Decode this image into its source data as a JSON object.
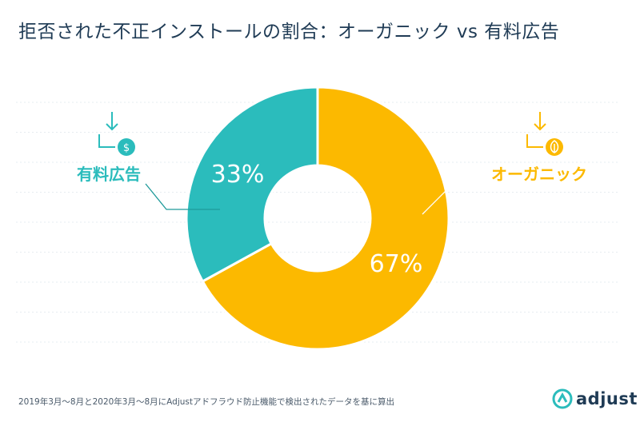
{
  "title": "拒否された不正インストールの割合：オーガニック vs 有料広告",
  "footnote": "2019年3月〜8月と2020年3月〜8月にAdjustアドフラウド防止機能で検出されたデータを基に算出",
  "logo": {
    "text": "adjust",
    "icon": "adjust-logo-icon"
  },
  "colors": {
    "organic": "#fcb900",
    "paid": "#2bbcbc",
    "text": "#1f3b55",
    "grid": "#e6ecf0"
  },
  "chart_data": {
    "type": "pie",
    "donut": true,
    "categories": [
      "有料広告",
      "オーガニック"
    ],
    "values": [
      33,
      67
    ],
    "value_labels": [
      "33%",
      "67%"
    ],
    "title": "拒否された不正インストールの割合：オーガニック vs 有料広告",
    "legend_icons": [
      "download-dollar-icon",
      "download-leaf-icon"
    ],
    "grid": true
  }
}
